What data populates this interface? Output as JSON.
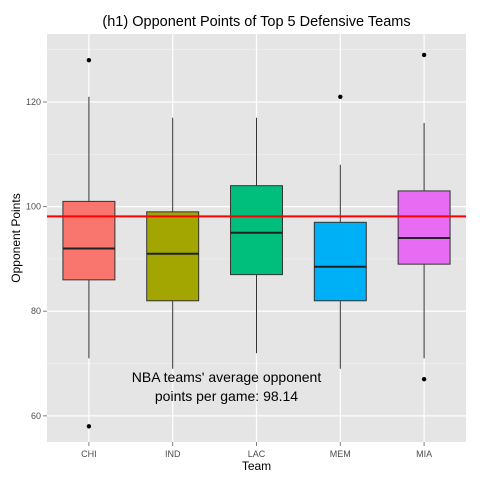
{
  "chart_data": {
    "type": "boxplot",
    "title": "(h1) Opponent Points of Top 5 Defensive Teams",
    "xlabel": "Team",
    "ylabel": "Opponent Points",
    "ylim": [
      55,
      133
    ],
    "yticks": [
      60,
      80,
      100,
      120
    ],
    "categories": [
      "CHI",
      "IND",
      "LAC",
      "MEM",
      "MIA"
    ],
    "colors": [
      "#F8766D",
      "#A3A500",
      "#00BF7D",
      "#00B0F6",
      "#E76BF3"
    ],
    "boxes": [
      {
        "team": "CHI",
        "min": 71,
        "q1": 86,
        "median": 92,
        "q3": 101,
        "max": 121,
        "outliers": [
          128,
          58
        ]
      },
      {
        "team": "IND",
        "min": 69,
        "q1": 82,
        "median": 91,
        "q3": 99,
        "max": 117,
        "outliers": []
      },
      {
        "team": "LAC",
        "min": 72,
        "q1": 87,
        "median": 95,
        "q3": 104,
        "max": 117,
        "outliers": []
      },
      {
        "team": "MEM",
        "min": 69,
        "q1": 82,
        "median": 88.5,
        "q3": 97,
        "max": 108,
        "outliers": [
          121
        ]
      },
      {
        "team": "MIA",
        "min": 71,
        "q1": 89,
        "median": 94,
        "q3": 103,
        "max": 116,
        "outliers": [
          129,
          67
        ]
      }
    ],
    "reference_line": {
      "value": 98.14,
      "color": "#FF0000"
    },
    "annotation": {
      "line1": "NBA teams' average opponent",
      "line2": "points per game: 98.14",
      "x_category": "LAC",
      "y_line1": 66.5,
      "y_line2": 62.8
    },
    "grid": true,
    "background": "#E5E5E5"
  }
}
